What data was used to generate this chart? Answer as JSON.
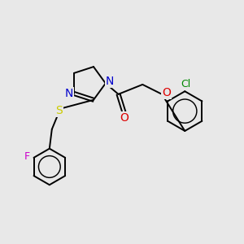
{
  "bg_color": "#e8e8e8",
  "bond_color": "#000000",
  "atom_colors": {
    "N": "#0000cc",
    "O": "#dd0000",
    "S": "#cccc00",
    "F": "#cc00cc",
    "Cl": "#008800",
    "C": "#000000"
  },
  "font_size": 9,
  "line_width": 1.4,
  "fig_size": [
    3.0,
    3.0
  ],
  "dpi": 100,
  "xlim": [
    0,
    10
  ],
  "ylim": [
    0,
    10
  ]
}
